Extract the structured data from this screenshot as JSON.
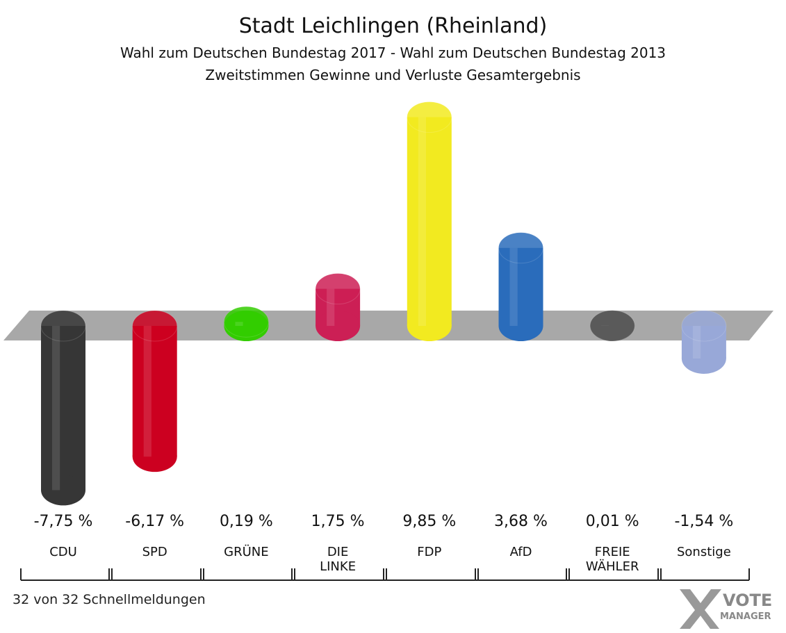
{
  "chart_data": {
    "type": "bar",
    "title": "Stadt Leichlingen (Rheinland)",
    "subtitle": "Wahl zum Deutschen Bundestag 2017 - Wahl zum Deutschen Bundestag 2013",
    "subtitle2": "Zweitstimmen Gewinne und Verluste Gesamtergebnis",
    "categories": [
      "CDU",
      "SPD",
      "GRÜNE",
      "DIE LINKE",
      "FDP",
      "AfD",
      "FREIE WÄHLER",
      "Sonstige"
    ],
    "values": [
      -7.75,
      -6.17,
      0.19,
      1.75,
      9.85,
      3.68,
      0.01,
      -1.54
    ],
    "value_labels": [
      "-7,75 %",
      "-6,17 %",
      "0,19 %",
      "1,75 %",
      "9,85 %",
      "3,68 %",
      "0,01 %",
      "-1,54 %"
    ],
    "colors": [
      "#363636",
      "#cc0020",
      "#33cc00",
      "#cc1f55",
      "#f2ea20",
      "#2a6cbb",
      "#5a5a5a",
      "#98a8d8"
    ],
    "footer": "32 von 32 Schnellmeldungen",
    "logo": [
      "VOTE",
      "MANAGER"
    ]
  }
}
